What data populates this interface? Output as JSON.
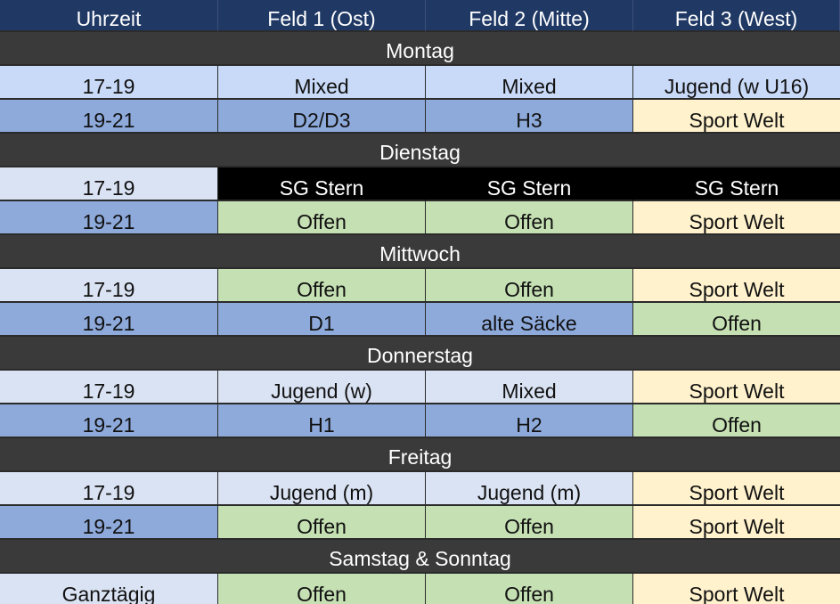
{
  "colors": {
    "header": "#1f3864",
    "day_band": "#3a3a3a",
    "light_blue": "#c9daf8",
    "pale_blue": "#dae3f3",
    "mid_blue": "#8eaadb",
    "yellow": "#fff2cc",
    "green": "#c5e0b3",
    "black": "#000000"
  },
  "header": [
    "Uhrzeit",
    "Feld 1 (Ost)",
    "Feld 2 (Mitte)",
    "Feld 3 (West)"
  ],
  "days": [
    {
      "name": "Montag",
      "slots": [
        {
          "time": "17-19",
          "cells": [
            "Mixed",
            "Mixed",
            "Jugend (w U16)"
          ],
          "bg": [
            "light_blue",
            "light_blue",
            "light_blue",
            "light_blue"
          ]
        },
        {
          "time": "19-21",
          "cells": [
            "D2/D3",
            "H3",
            "Sport Welt"
          ],
          "bg": [
            "mid_blue",
            "mid_blue",
            "mid_blue",
            "yellow"
          ]
        }
      ]
    },
    {
      "name": "Dienstag",
      "slots": [
        {
          "time": "17-19",
          "cells": [
            "SG Stern",
            "SG Stern",
            "SG Stern"
          ],
          "bg": [
            "pale_blue",
            "black",
            "black",
            "black"
          ]
        },
        {
          "time": "19-21",
          "cells": [
            "Offen",
            "Offen",
            "Sport Welt"
          ],
          "bg": [
            "mid_blue",
            "green",
            "green",
            "yellow"
          ]
        }
      ]
    },
    {
      "name": "Mittwoch",
      "slots": [
        {
          "time": "17-19",
          "cells": [
            "Offen",
            "Offen",
            "Sport Welt"
          ],
          "bg": [
            "pale_blue",
            "green",
            "green",
            "yellow"
          ]
        },
        {
          "time": "19-21",
          "cells": [
            "D1",
            "alte Säcke",
            "Offen"
          ],
          "bg": [
            "mid_blue",
            "mid_blue",
            "mid_blue",
            "green"
          ]
        }
      ]
    },
    {
      "name": "Donnerstag",
      "slots": [
        {
          "time": "17-19",
          "cells": [
            "Jugend (w)",
            "Mixed",
            "Sport Welt"
          ],
          "bg": [
            "pale_blue",
            "pale_blue",
            "pale_blue",
            "yellow"
          ]
        },
        {
          "time": "19-21",
          "cells": [
            "H1",
            "H2",
            "Offen"
          ],
          "bg": [
            "mid_blue",
            "mid_blue",
            "mid_blue",
            "green"
          ]
        }
      ]
    },
    {
      "name": "Freitag",
      "slots": [
        {
          "time": "17-19",
          "cells": [
            "Jugend (m)",
            "Jugend (m)",
            "Sport Welt"
          ],
          "bg": [
            "pale_blue",
            "pale_blue",
            "pale_blue",
            "yellow"
          ]
        },
        {
          "time": "19-21",
          "cells": [
            "Offen",
            "Offen",
            "Sport Welt"
          ],
          "bg": [
            "mid_blue",
            "green",
            "green",
            "yellow"
          ]
        }
      ]
    },
    {
      "name": "Samstag & Sonntag",
      "slots": [
        {
          "time": "Ganztägig",
          "cells": [
            "Offen",
            "Offen",
            "Sport Welt"
          ],
          "bg": [
            "pale_blue",
            "green",
            "green",
            "yellow"
          ]
        }
      ]
    }
  ]
}
